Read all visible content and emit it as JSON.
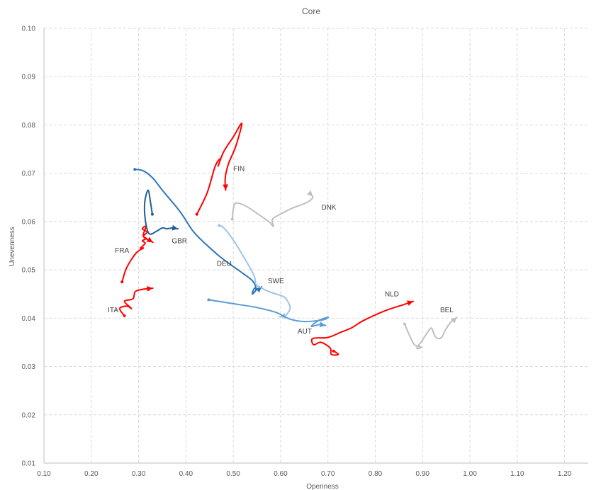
{
  "chart_data": {
    "type": "line",
    "title": "Core",
    "xlabel": "Openness",
    "ylabel": "Unevenness",
    "xlim": [
      0.1,
      1.25
    ],
    "ylim": [
      0.01,
      0.1
    ],
    "xticks": [
      "0.10",
      "0.20",
      "0.30",
      "0.40",
      "0.50",
      "0.60",
      "0.70",
      "0.80",
      "0.90",
      "1.00",
      "1.10",
      "1.20"
    ],
    "yticks": [
      "0.01",
      "0.02",
      "0.03",
      "0.04",
      "0.05",
      "0.06",
      "0.07",
      "0.08",
      "0.09",
      "0.10"
    ],
    "grid": true,
    "colors": {
      "red": "#ff0000",
      "darkblue": "#1f5f91",
      "blue": "#2e75b6",
      "lightblue": "#9dc3e6",
      "midblue": "#5b9bd5",
      "gray": "#bfbfbf"
    },
    "series": [
      {
        "name": "FIN",
        "color": "red",
        "label_at": [
          0.5,
          0.0705
        ],
        "points": [
          [
            0.423,
            0.0615
          ],
          [
            0.445,
            0.066
          ],
          [
            0.462,
            0.0715
          ],
          [
            0.473,
            0.073
          ],
          [
            0.468,
            0.0715
          ],
          [
            0.48,
            0.0745
          ],
          [
            0.5,
            0.0775
          ],
          [
            0.518,
            0.0803
          ],
          [
            0.505,
            0.0755
          ],
          [
            0.49,
            0.072
          ],
          [
            0.483,
            0.069
          ],
          [
            0.484,
            0.0665
          ]
        ]
      },
      {
        "name": "FRA",
        "color": "red",
        "label_at": [
          0.25,
          0.0535
        ],
        "points": [
          [
            0.265,
            0.0475
          ],
          [
            0.275,
            0.0505
          ],
          [
            0.295,
            0.0535
          ],
          [
            0.31,
            0.0545
          ],
          [
            0.304,
            0.0545
          ],
          [
            0.314,
            0.0555
          ],
          [
            0.308,
            0.056
          ],
          [
            0.316,
            0.0565
          ],
          [
            0.31,
            0.057
          ],
          [
            0.318,
            0.0578
          ],
          [
            0.308,
            0.0585
          ],
          [
            0.316,
            0.059
          ],
          [
            0.31,
            0.057
          ],
          [
            0.325,
            0.056
          ],
          [
            0.33,
            0.0557
          ]
        ]
      },
      {
        "name": "ITA",
        "color": "red",
        "label_at": [
          0.235,
          0.0412
        ],
        "points": [
          [
            0.27,
            0.0405
          ],
          [
            0.26,
            0.042
          ],
          [
            0.275,
            0.0425
          ],
          [
            0.285,
            0.042
          ],
          [
            0.27,
            0.0435
          ],
          [
            0.288,
            0.044
          ],
          [
            0.293,
            0.0455
          ],
          [
            0.31,
            0.046
          ],
          [
            0.33,
            0.0462
          ]
        ]
      },
      {
        "name": "NLD",
        "color": "red",
        "label_at": [
          0.82,
          0.0445
        ],
        "points": [
          [
            0.712,
            0.0332
          ],
          [
            0.722,
            0.0325
          ],
          [
            0.707,
            0.0325
          ],
          [
            0.705,
            0.0338
          ],
          [
            0.685,
            0.035
          ],
          [
            0.67,
            0.0345
          ],
          [
            0.668,
            0.0358
          ],
          [
            0.7,
            0.036
          ],
          [
            0.725,
            0.037
          ],
          [
            0.75,
            0.038
          ],
          [
            0.775,
            0.0395
          ],
          [
            0.82,
            0.0415
          ],
          [
            0.86,
            0.0428
          ],
          [
            0.88,
            0.0435
          ]
        ]
      },
      {
        "name": "GBR",
        "color": "darkblue",
        "label_at": [
          0.37,
          0.0555
        ],
        "points": [
          [
            0.329,
            0.0615
          ],
          [
            0.325,
            0.064
          ],
          [
            0.32,
            0.0665
          ],
          [
            0.313,
            0.064
          ],
          [
            0.314,
            0.0605
          ],
          [
            0.322,
            0.0575
          ],
          [
            0.338,
            0.058
          ],
          [
            0.35,
            0.0587
          ],
          [
            0.36,
            0.0585
          ],
          [
            0.372,
            0.0587
          ],
          [
            0.383,
            0.0585
          ]
        ]
      },
      {
        "name": "DEU",
        "color": "blue",
        "label_at": [
          0.465,
          0.0508
        ],
        "points": [
          [
            0.292,
            0.0708
          ],
          [
            0.31,
            0.0705
          ],
          [
            0.33,
            0.069
          ],
          [
            0.35,
            0.0665
          ],
          [
            0.38,
            0.063
          ],
          [
            0.395,
            0.061
          ],
          [
            0.415,
            0.058
          ],
          [
            0.44,
            0.0555
          ],
          [
            0.475,
            0.0525
          ],
          [
            0.51,
            0.05
          ],
          [
            0.54,
            0.0478
          ],
          [
            0.548,
            0.046
          ],
          [
            0.54,
            0.045
          ],
          [
            0.545,
            0.0462
          ],
          [
            0.552,
            0.0458
          ],
          [
            0.56,
            0.0465
          ]
        ]
      },
      {
        "name": "SWE",
        "color": "lightblue",
        "label_at": [
          0.573,
          0.0472
        ],
        "points": [
          [
            0.47,
            0.0592
          ],
          [
            0.48,
            0.0587
          ],
          [
            0.5,
            0.0562
          ],
          [
            0.52,
            0.053
          ],
          [
            0.535,
            0.0505
          ],
          [
            0.545,
            0.0485
          ],
          [
            0.548,
            0.047
          ],
          [
            0.555,
            0.0465
          ],
          [
            0.575,
            0.0455
          ],
          [
            0.605,
            0.0445
          ],
          [
            0.615,
            0.0435
          ],
          [
            0.62,
            0.042
          ],
          [
            0.61,
            0.0405
          ],
          [
            0.598,
            0.0403
          ]
        ]
      },
      {
        "name": "AUT",
        "color": "midblue",
        "label_at": [
          0.636,
          0.0368
        ],
        "points": [
          [
            0.448,
            0.0438
          ],
          [
            0.5,
            0.043
          ],
          [
            0.55,
            0.0422
          ],
          [
            0.59,
            0.0412
          ],
          [
            0.62,
            0.0398
          ],
          [
            0.65,
            0.0393
          ],
          [
            0.68,
            0.0395
          ],
          [
            0.695,
            0.0398
          ],
          [
            0.7,
            0.0402
          ],
          [
            0.68,
            0.0395
          ],
          [
            0.665,
            0.0383
          ],
          [
            0.683,
            0.0387
          ],
          [
            0.695,
            0.0385
          ]
        ]
      },
      {
        "name": "DNK",
        "color": "gray",
        "label_at": [
          0.686,
          0.0625
        ],
        "points": [
          [
            0.498,
            0.0605
          ],
          [
            0.5,
            0.0625
          ],
          [
            0.505,
            0.0638
          ],
          [
            0.525,
            0.0633
          ],
          [
            0.55,
            0.0617
          ],
          [
            0.575,
            0.06
          ],
          [
            0.585,
            0.059
          ],
          [
            0.583,
            0.0605
          ],
          [
            0.605,
            0.0618
          ],
          [
            0.625,
            0.0628
          ],
          [
            0.645,
            0.0635
          ],
          [
            0.66,
            0.0642
          ],
          [
            0.668,
            0.065
          ],
          [
            0.665,
            0.0655
          ],
          [
            0.668,
            0.0652
          ]
        ]
      },
      {
        "name": "BEL",
        "color": "gray",
        "label_at": [
          0.937,
          0.0412
        ],
        "points": [
          [
            0.862,
            0.0388
          ],
          [
            0.872,
            0.0365
          ],
          [
            0.883,
            0.0345
          ],
          [
            0.897,
            0.034
          ],
          [
            0.888,
            0.0338
          ],
          [
            0.9,
            0.0355
          ],
          [
            0.915,
            0.0377
          ],
          [
            0.92,
            0.0378
          ],
          [
            0.925,
            0.0365
          ],
          [
            0.932,
            0.0358
          ],
          [
            0.94,
            0.036
          ],
          [
            0.948,
            0.0375
          ],
          [
            0.958,
            0.039
          ],
          [
            0.968,
            0.0398
          ],
          [
            0.972,
            0.0402
          ]
        ]
      }
    ]
  }
}
